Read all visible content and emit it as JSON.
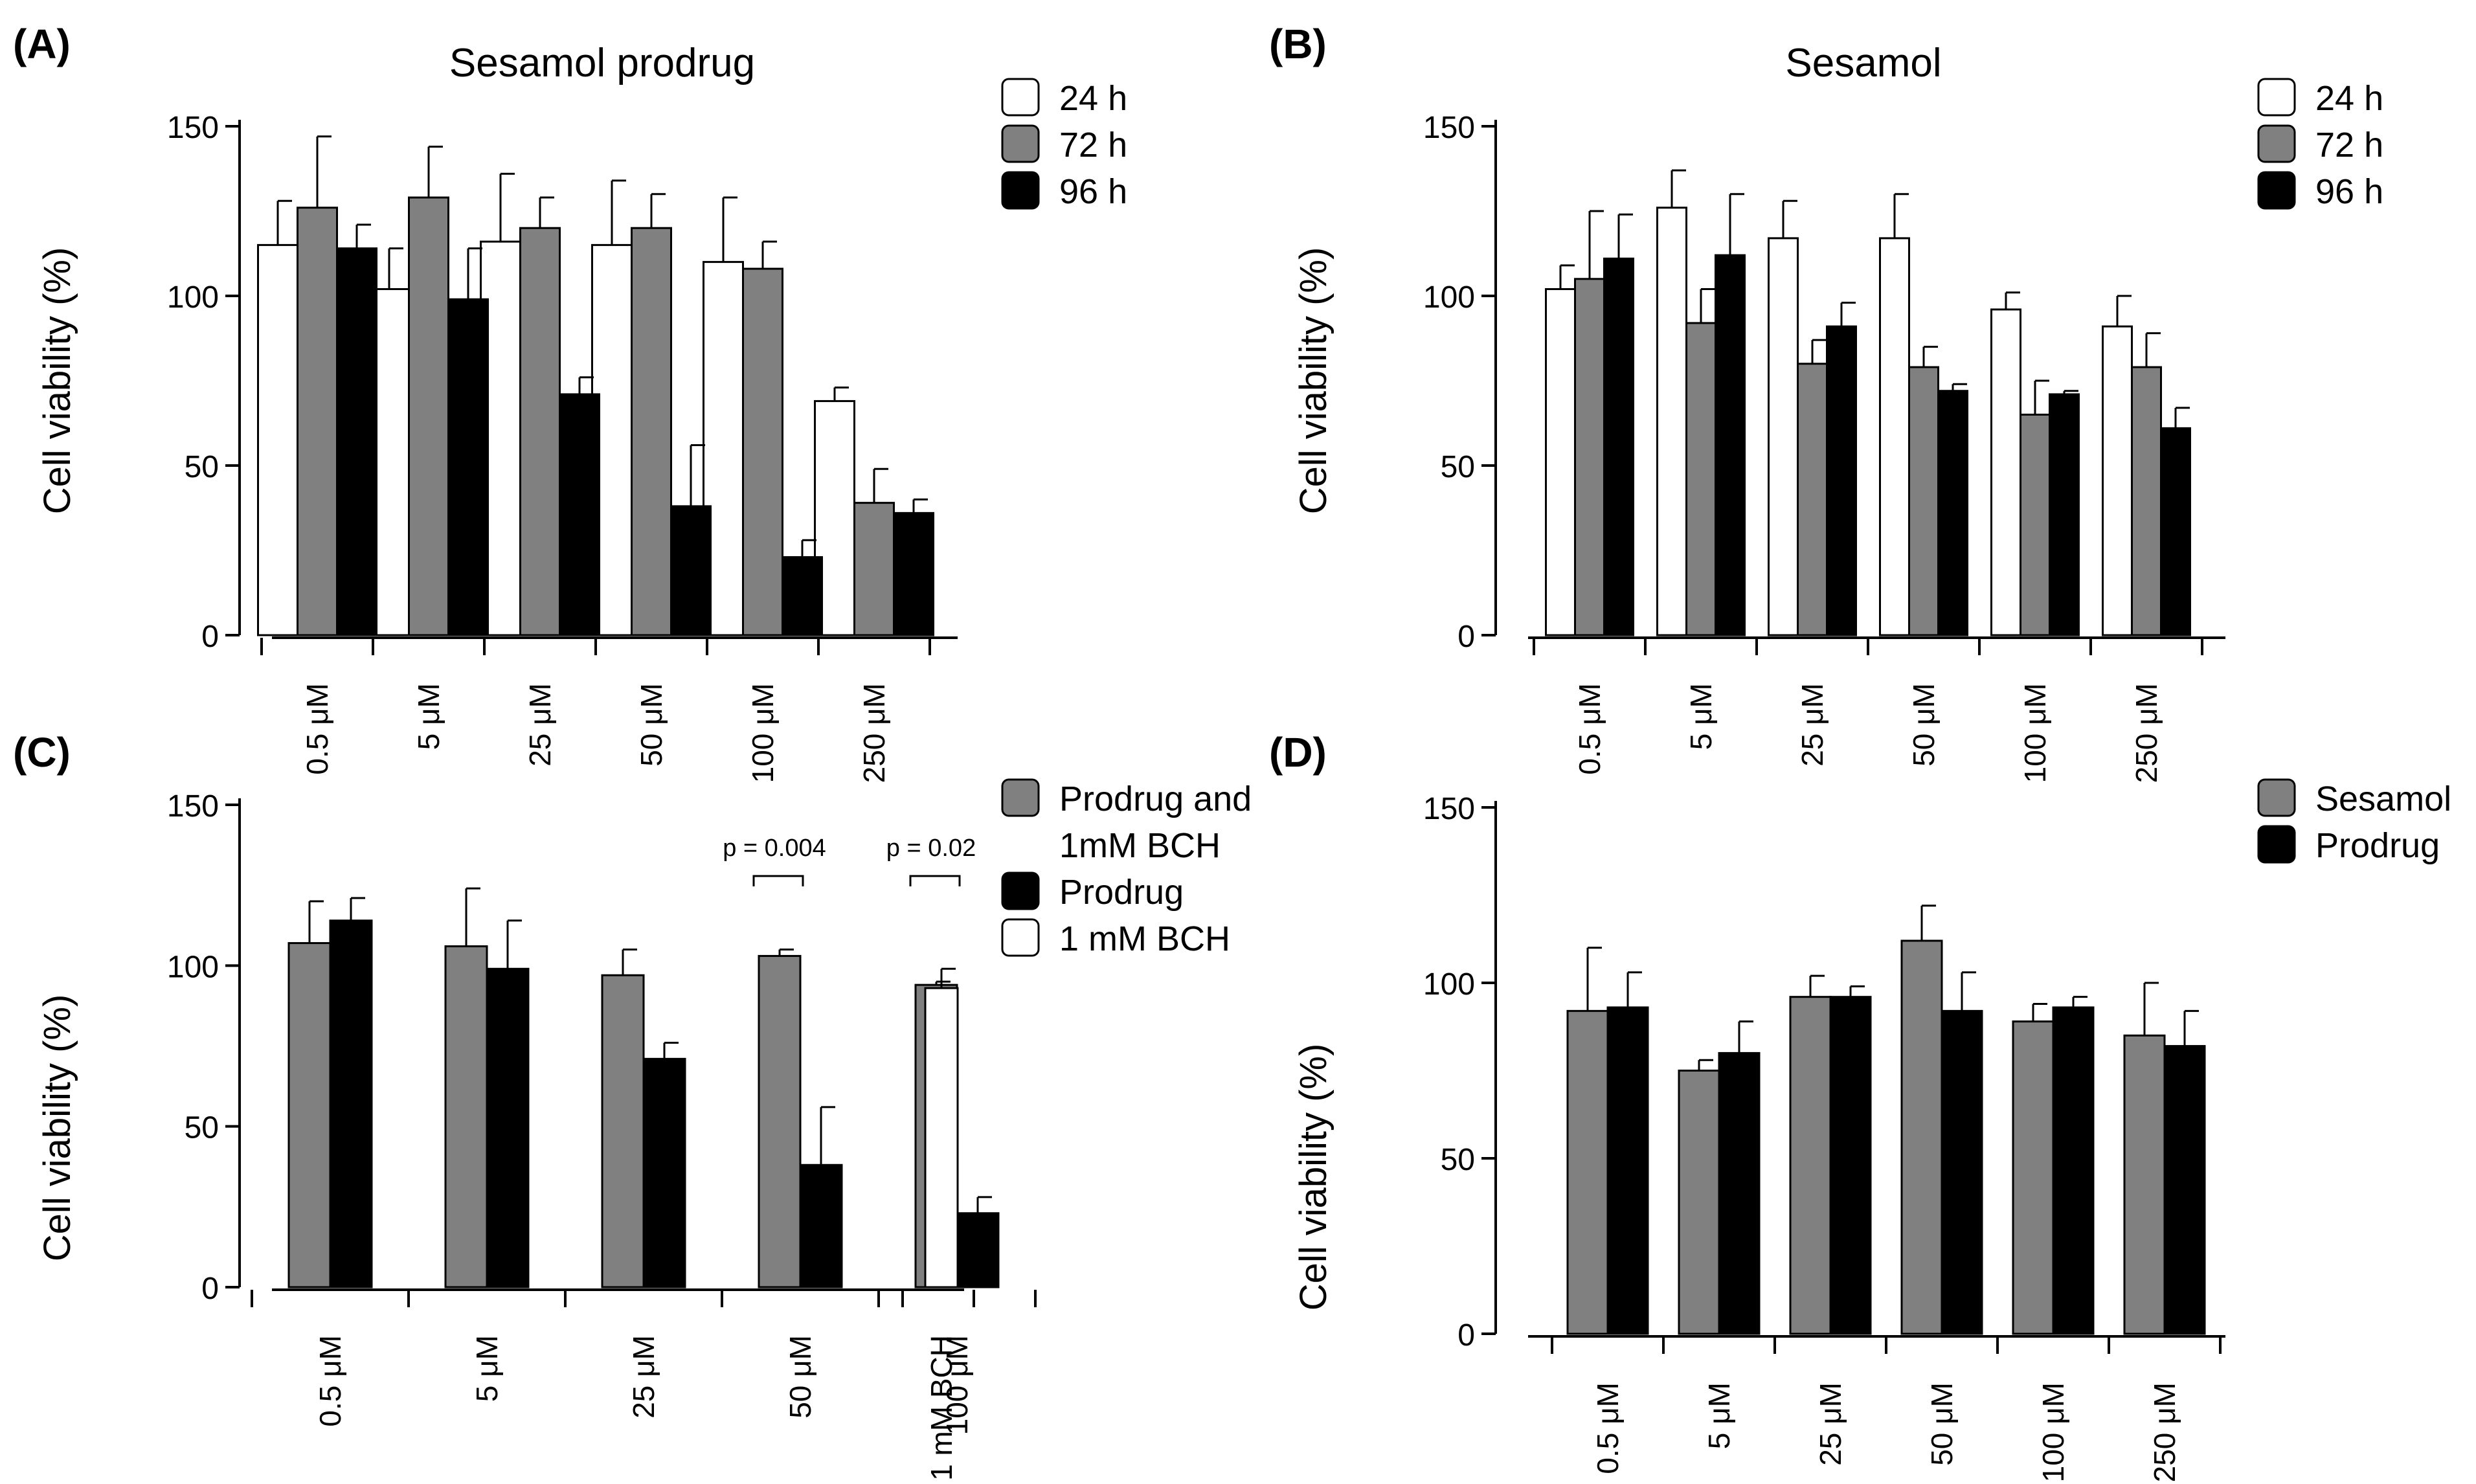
{
  "colors": {
    "white": "#ffffff",
    "gray": "#808080",
    "black": "#000000",
    "stroke": "#000000"
  },
  "chart_data": [
    {
      "panel": "(A)",
      "type": "bar",
      "title": "Sesamol prodrug",
      "ylabel": "Cell viability (%)",
      "ylim": [
        0,
        150
      ],
      "yticks": [
        0,
        50,
        100,
        150
      ],
      "categories": [
        "0.5 μM",
        "5 μM",
        "25 μM",
        "50 μM",
        "100 μM",
        "250 μM"
      ],
      "legend": {
        "position": "top-right",
        "entries": [
          {
            "label": "24 h",
            "color": "white"
          },
          {
            "label": "72 h",
            "color": "gray"
          },
          {
            "label": "96 h",
            "color": "black"
          }
        ]
      },
      "series": [
        {
          "name": "24 h",
          "color": "white",
          "values": [
            115,
            102,
            116,
            115,
            110,
            69
          ],
          "errors": [
            13,
            12,
            20,
            19,
            19,
            4
          ]
        },
        {
          "name": "72 h",
          "color": "gray",
          "values": [
            126,
            129,
            120,
            120,
            108,
            39
          ],
          "errors": [
            21,
            15,
            9,
            10,
            8,
            10
          ]
        },
        {
          "name": "96 h",
          "color": "black",
          "values": [
            114,
            99,
            71,
            38,
            23,
            36
          ],
          "errors": [
            7,
            15,
            5,
            18,
            5,
            4
          ]
        }
      ]
    },
    {
      "panel": "(B)",
      "type": "bar",
      "title": "Sesamol",
      "ylabel": "Cell viability (%)",
      "ylim": [
        0,
        150
      ],
      "yticks": [
        0,
        50,
        100,
        150
      ],
      "categories": [
        "0.5 μM",
        "5 μM",
        "25 μM",
        "50 μM",
        "100 μM",
        "250 μM"
      ],
      "legend": {
        "position": "top-right",
        "entries": [
          {
            "label": "24 h",
            "color": "white"
          },
          {
            "label": "72 h",
            "color": "gray"
          },
          {
            "label": "96 h",
            "color": "black"
          }
        ]
      },
      "series": [
        {
          "name": "24 h",
          "color": "white",
          "values": [
            102,
            126,
            117,
            117,
            96,
            91
          ],
          "errors": [
            7,
            11,
            11,
            13,
            5,
            9
          ]
        },
        {
          "name": "72 h",
          "color": "gray",
          "values": [
            105,
            92,
            80,
            79,
            65,
            79
          ],
          "errors": [
            20,
            10,
            7,
            6,
            10,
            10
          ]
        },
        {
          "name": "96 h",
          "color": "black",
          "values": [
            111,
            112,
            91,
            72,
            71,
            61
          ],
          "errors": [
            13,
            18,
            7,
            2,
            1,
            6
          ]
        }
      ]
    },
    {
      "panel": "(C)",
      "type": "bar",
      "title": "",
      "ylabel": "Cell viability (%)",
      "ylim": [
        0,
        150
      ],
      "yticks": [
        0,
        50,
        100,
        150
      ],
      "categories": [
        "0.5 μM",
        "5 μM",
        "25 μM",
        "50 μM",
        "100 μM",
        "1 mM BCH"
      ],
      "legend": {
        "position": "top-right",
        "entries": [
          {
            "label": "Prodrug and\n1mM BCH",
            "color": "gray"
          },
          {
            "label": "Prodrug",
            "color": "black"
          },
          {
            "label": "1 mM BCH",
            "color": "white"
          }
        ]
      },
      "series": [
        {
          "name": "Prodrug and 1mM BCH",
          "color": "gray",
          "values": [
            107,
            106,
            97,
            103,
            94,
            null
          ],
          "errors": [
            13,
            18,
            8,
            2,
            1,
            null
          ]
        },
        {
          "name": "Prodrug",
          "color": "black",
          "values": [
            114,
            99,
            71,
            38,
            23,
            null
          ],
          "errors": [
            7,
            15,
            5,
            18,
            5,
            null
          ]
        },
        {
          "name": "1 mM BCH",
          "color": "white",
          "values": [
            null,
            null,
            null,
            null,
            null,
            93
          ],
          "errors": [
            null,
            null,
            null,
            null,
            null,
            6
          ]
        }
      ],
      "annotations": [
        {
          "text": "p = 0.004",
          "category_index": 3
        },
        {
          "text": "p = 0.02",
          "category_index": 4
        }
      ]
    },
    {
      "panel": "(D)",
      "type": "bar",
      "title": "",
      "ylabel": "Cell viability (%)",
      "ylim": [
        0,
        150
      ],
      "yticks": [
        0,
        50,
        100,
        150
      ],
      "categories": [
        "0.5 μM",
        "5 μM",
        "25 μM",
        "50 μM",
        "100 μM",
        "250 μM"
      ],
      "legend": {
        "position": "top-right",
        "entries": [
          {
            "label": "Sesamol",
            "color": "gray"
          },
          {
            "label": "Prodrug",
            "color": "black"
          }
        ]
      },
      "series": [
        {
          "name": "Sesamol",
          "color": "gray",
          "values": [
            92,
            75,
            96,
            112,
            89,
            85
          ],
          "errors": [
            18,
            3,
            6,
            10,
            5,
            15
          ]
        },
        {
          "name": "Prodrug",
          "color": "black",
          "values": [
            93,
            80,
            96,
            92,
            93,
            82
          ],
          "errors": [
            10,
            9,
            3,
            11,
            3,
            10
          ]
        }
      ]
    }
  ]
}
